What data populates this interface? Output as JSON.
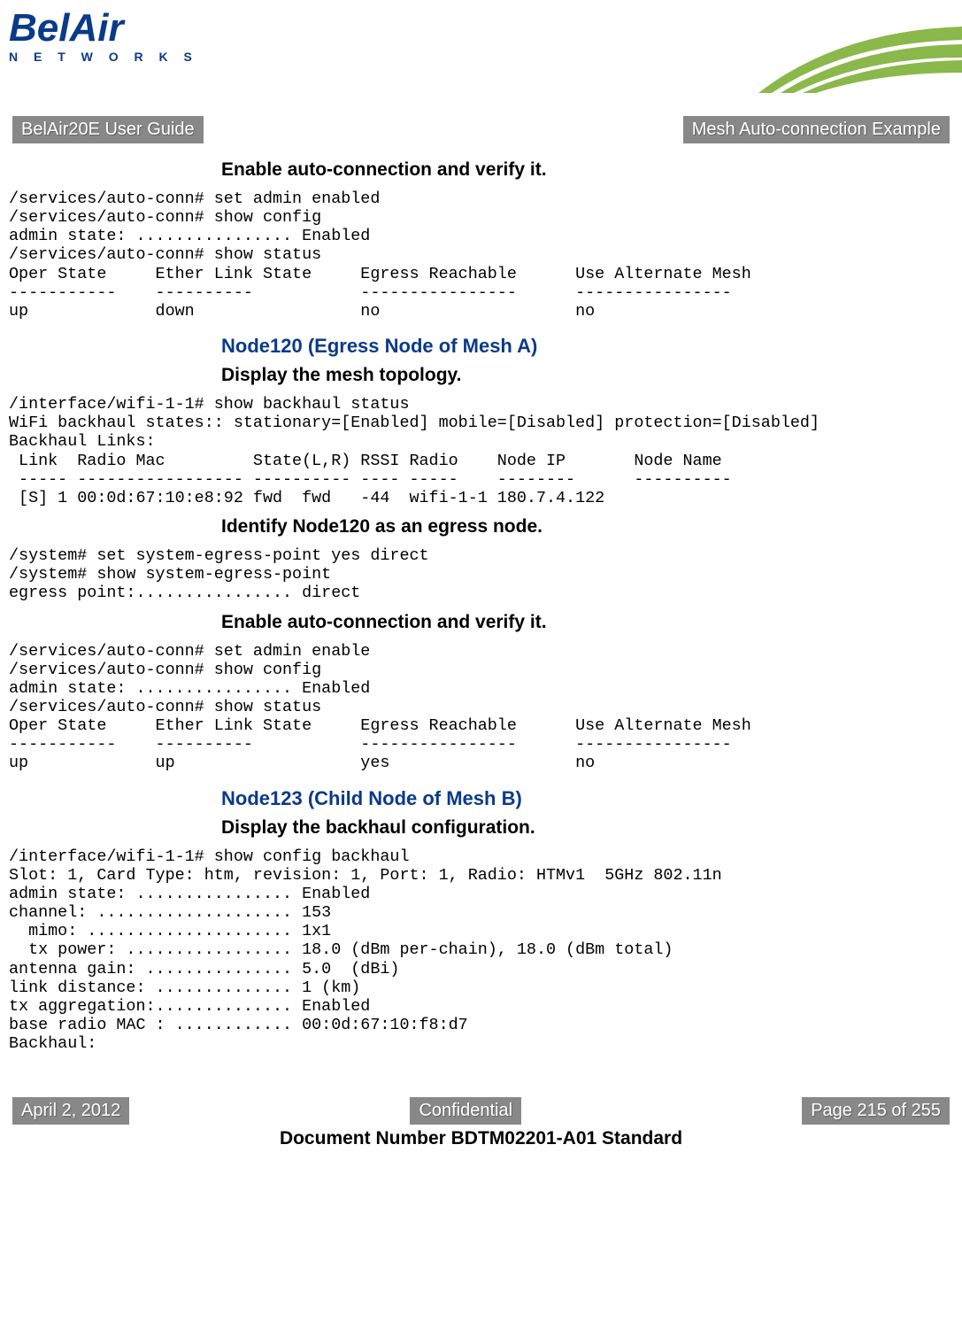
{
  "logo": {
    "main": "BelAir",
    "sub": "N E T W O R K S"
  },
  "header": {
    "left": "BelAir20E User Guide",
    "right": "Mesh Auto-connection Example"
  },
  "sections": [
    {
      "type": "sub",
      "text": "Enable auto-connection and verify it."
    },
    {
      "type": "code",
      "text": "/services/auto-conn# set admin enabled\n/services/auto-conn# show config\nadmin state: ................ Enabled\n/services/auto-conn# show status\nOper State     Ether Link State     Egress Reachable      Use Alternate Mesh\n-----------    ----------           ----------------      ----------------\nup             down                 no                    no"
    },
    {
      "type": "section",
      "text": "Node120 (Egress Node of Mesh A)"
    },
    {
      "type": "sub",
      "text": "Display the mesh topology."
    },
    {
      "type": "code",
      "text": "/interface/wifi-1-1# show backhaul status\nWiFi backhaul states:: stationary=[Enabled] mobile=[Disabled] protection=[Disabled]\nBackhaul Links:\n Link  Radio Mac         State(L,R) RSSI Radio    Node IP       Node Name\n ----- ----------------- ---------- ---- -----    --------      ----------\n [S] 1 00:0d:67:10:e8:92 fwd  fwd   -44  wifi-1-1 180.7.4.122"
    },
    {
      "type": "sub",
      "text": "Identify Node120 as an egress node."
    },
    {
      "type": "code",
      "text": "/system# set system-egress-point yes direct\n/system# show system-egress-point\negress point:................ direct"
    },
    {
      "type": "sub",
      "text": "Enable auto-connection and verify it."
    },
    {
      "type": "code",
      "text": "/services/auto-conn# set admin enable\n/services/auto-conn# show config\nadmin state: ................ Enabled\n/services/auto-conn# show status\nOper State     Ether Link State     Egress Reachable      Use Alternate Mesh\n-----------    ----------           ----------------      ----------------\nup             up                   yes                   no"
    },
    {
      "type": "section",
      "text": "Node123 (Child Node of Mesh B)"
    },
    {
      "type": "sub",
      "text": "Display the backhaul configuration."
    },
    {
      "type": "code",
      "text": "/interface/wifi-1-1# show config backhaul\nSlot: 1, Card Type: htm, revision: 1, Port: 1, Radio: HTMv1  5GHz 802.11n\nadmin state: ................ Enabled\nchannel: .................... 153\n  mimo: ..................... 1x1\n  tx power: ................. 18.0 (dBm per-chain), 18.0 (dBm total)\nantenna gain: ............... 5.0  (dBi)\nlink distance: .............. 1 (km)\ntx aggregation:.............. Enabled\nbase radio MAC : ............ 00:0d:67:10:f8:d7\nBackhaul:"
    }
  ],
  "footer": {
    "date": "April 2, 2012",
    "center": "Confidential",
    "page": "Page 215 of 255",
    "docnum": "Document Number BDTM02201-A01 Standard"
  },
  "colors": {
    "brand_blue": "#0a3a8a",
    "bar_gray": "#888888",
    "swoosh_green": "#8ab84a"
  }
}
